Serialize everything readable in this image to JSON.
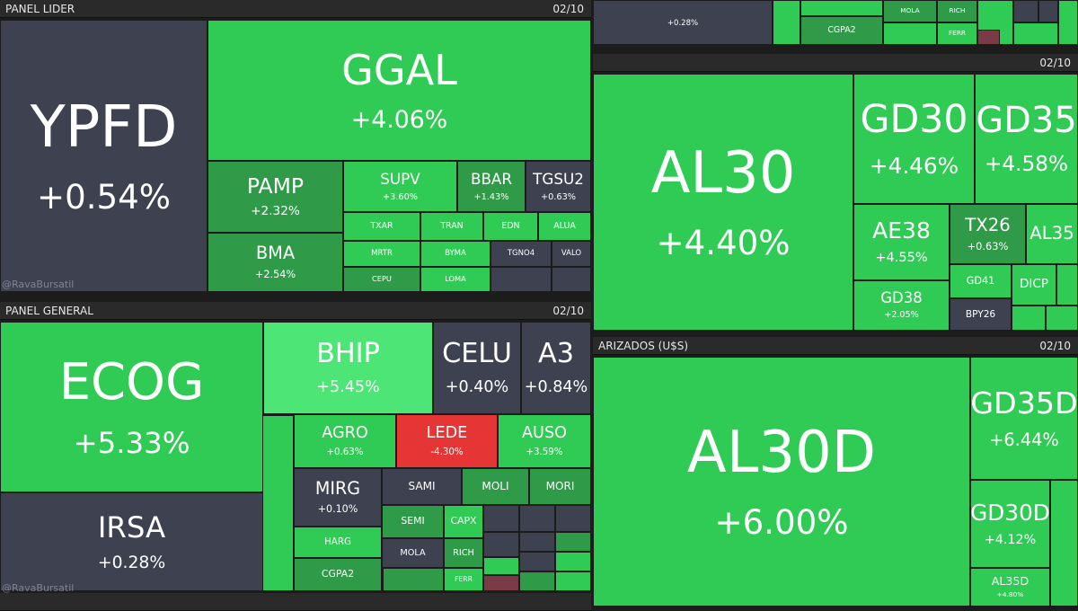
{
  "panels": [
    {
      "title": "PANEL LIDER",
      "date": "02/10",
      "watermark": "@RavaBursatil",
      "tiles": [
        {
          "label": "YPFD",
          "change": "+0.54%"
        },
        {
          "label": "GGAL",
          "change": "+4.06%"
        },
        {
          "label": "PAMP",
          "change": "+2.32%"
        },
        {
          "label": "BMA",
          "change": "+2.54%"
        },
        {
          "label": "SUPV",
          "change": "+3.60%"
        },
        {
          "label": "BBAR",
          "change": "+1.43%"
        },
        {
          "label": "TGSU2",
          "change": "+0.63%"
        },
        {
          "label": "TXAR"
        },
        {
          "label": "TRAN"
        },
        {
          "label": "EDN"
        },
        {
          "label": "ALUA"
        },
        {
          "label": "MRTR"
        },
        {
          "label": "BYMA"
        },
        {
          "label": "TGNO4"
        },
        {
          "label": "VALO"
        },
        {
          "label": "CEPU"
        },
        {
          "label": "LOMA"
        }
      ]
    },
    {
      "title": "PANEL GENERAL",
      "date": "02/10",
      "watermark": "@RavaBursatil",
      "tiles": [
        {
          "label": "ECOG",
          "change": "+5.33%"
        },
        {
          "label": "IRSA",
          "change": "+0.28%"
        },
        {
          "label": "BHIP",
          "change": "+5.45%"
        },
        {
          "label": "CELU",
          "change": "+0.40%"
        },
        {
          "label": "A3",
          "change": "+0.84%"
        },
        {
          "label": "AGRO",
          "change": "+0.63%"
        },
        {
          "label": "LEDE",
          "change": "-4.30%"
        },
        {
          "label": "AUSO",
          "change": "+3.59%"
        },
        {
          "label": "MIRG",
          "change": "+0.10%"
        },
        {
          "label": "SAMI"
        },
        {
          "label": "MOLI"
        },
        {
          "label": "MORI"
        },
        {
          "label": "HARG"
        },
        {
          "label": "CGPA2"
        },
        {
          "label": "SEMI"
        },
        {
          "label": "MOLA"
        },
        {
          "label": "CAPX"
        },
        {
          "label": "RICH"
        },
        {
          "label": "FERR"
        }
      ]
    },
    {
      "tiles": [
        {
          "change": "+0.28%"
        },
        {
          "label": "CGPA2"
        },
        {
          "label": "MOLA"
        },
        {
          "label": "RICH"
        },
        {
          "label": "FERR"
        }
      ]
    },
    {
      "date": "02/10",
      "tiles": [
        {
          "label": "AL30",
          "change": "+4.40%"
        },
        {
          "label": "GD30",
          "change": "+4.46%"
        },
        {
          "label": "GD35",
          "change": "+4.58%"
        },
        {
          "label": "AE38",
          "change": "+4.55%"
        },
        {
          "label": "TX26",
          "change": "+0.63%"
        },
        {
          "label": "AL35"
        },
        {
          "label": "GD38",
          "change": "+2.05%"
        },
        {
          "label": "GD41"
        },
        {
          "label": "DICP"
        },
        {
          "label": "BPY26"
        }
      ]
    },
    {
      "title": "ARIZADOS (U$S)",
      "date": "02/10",
      "tiles": [
        {
          "label": "AL30D",
          "change": "+6.00%"
        },
        {
          "label": "GD35D",
          "change": "+6.44%"
        },
        {
          "label": "GD30D",
          "change": "+4.12%"
        },
        {
          "label": "AL35D",
          "change": "+4.80%"
        }
      ]
    }
  ]
}
